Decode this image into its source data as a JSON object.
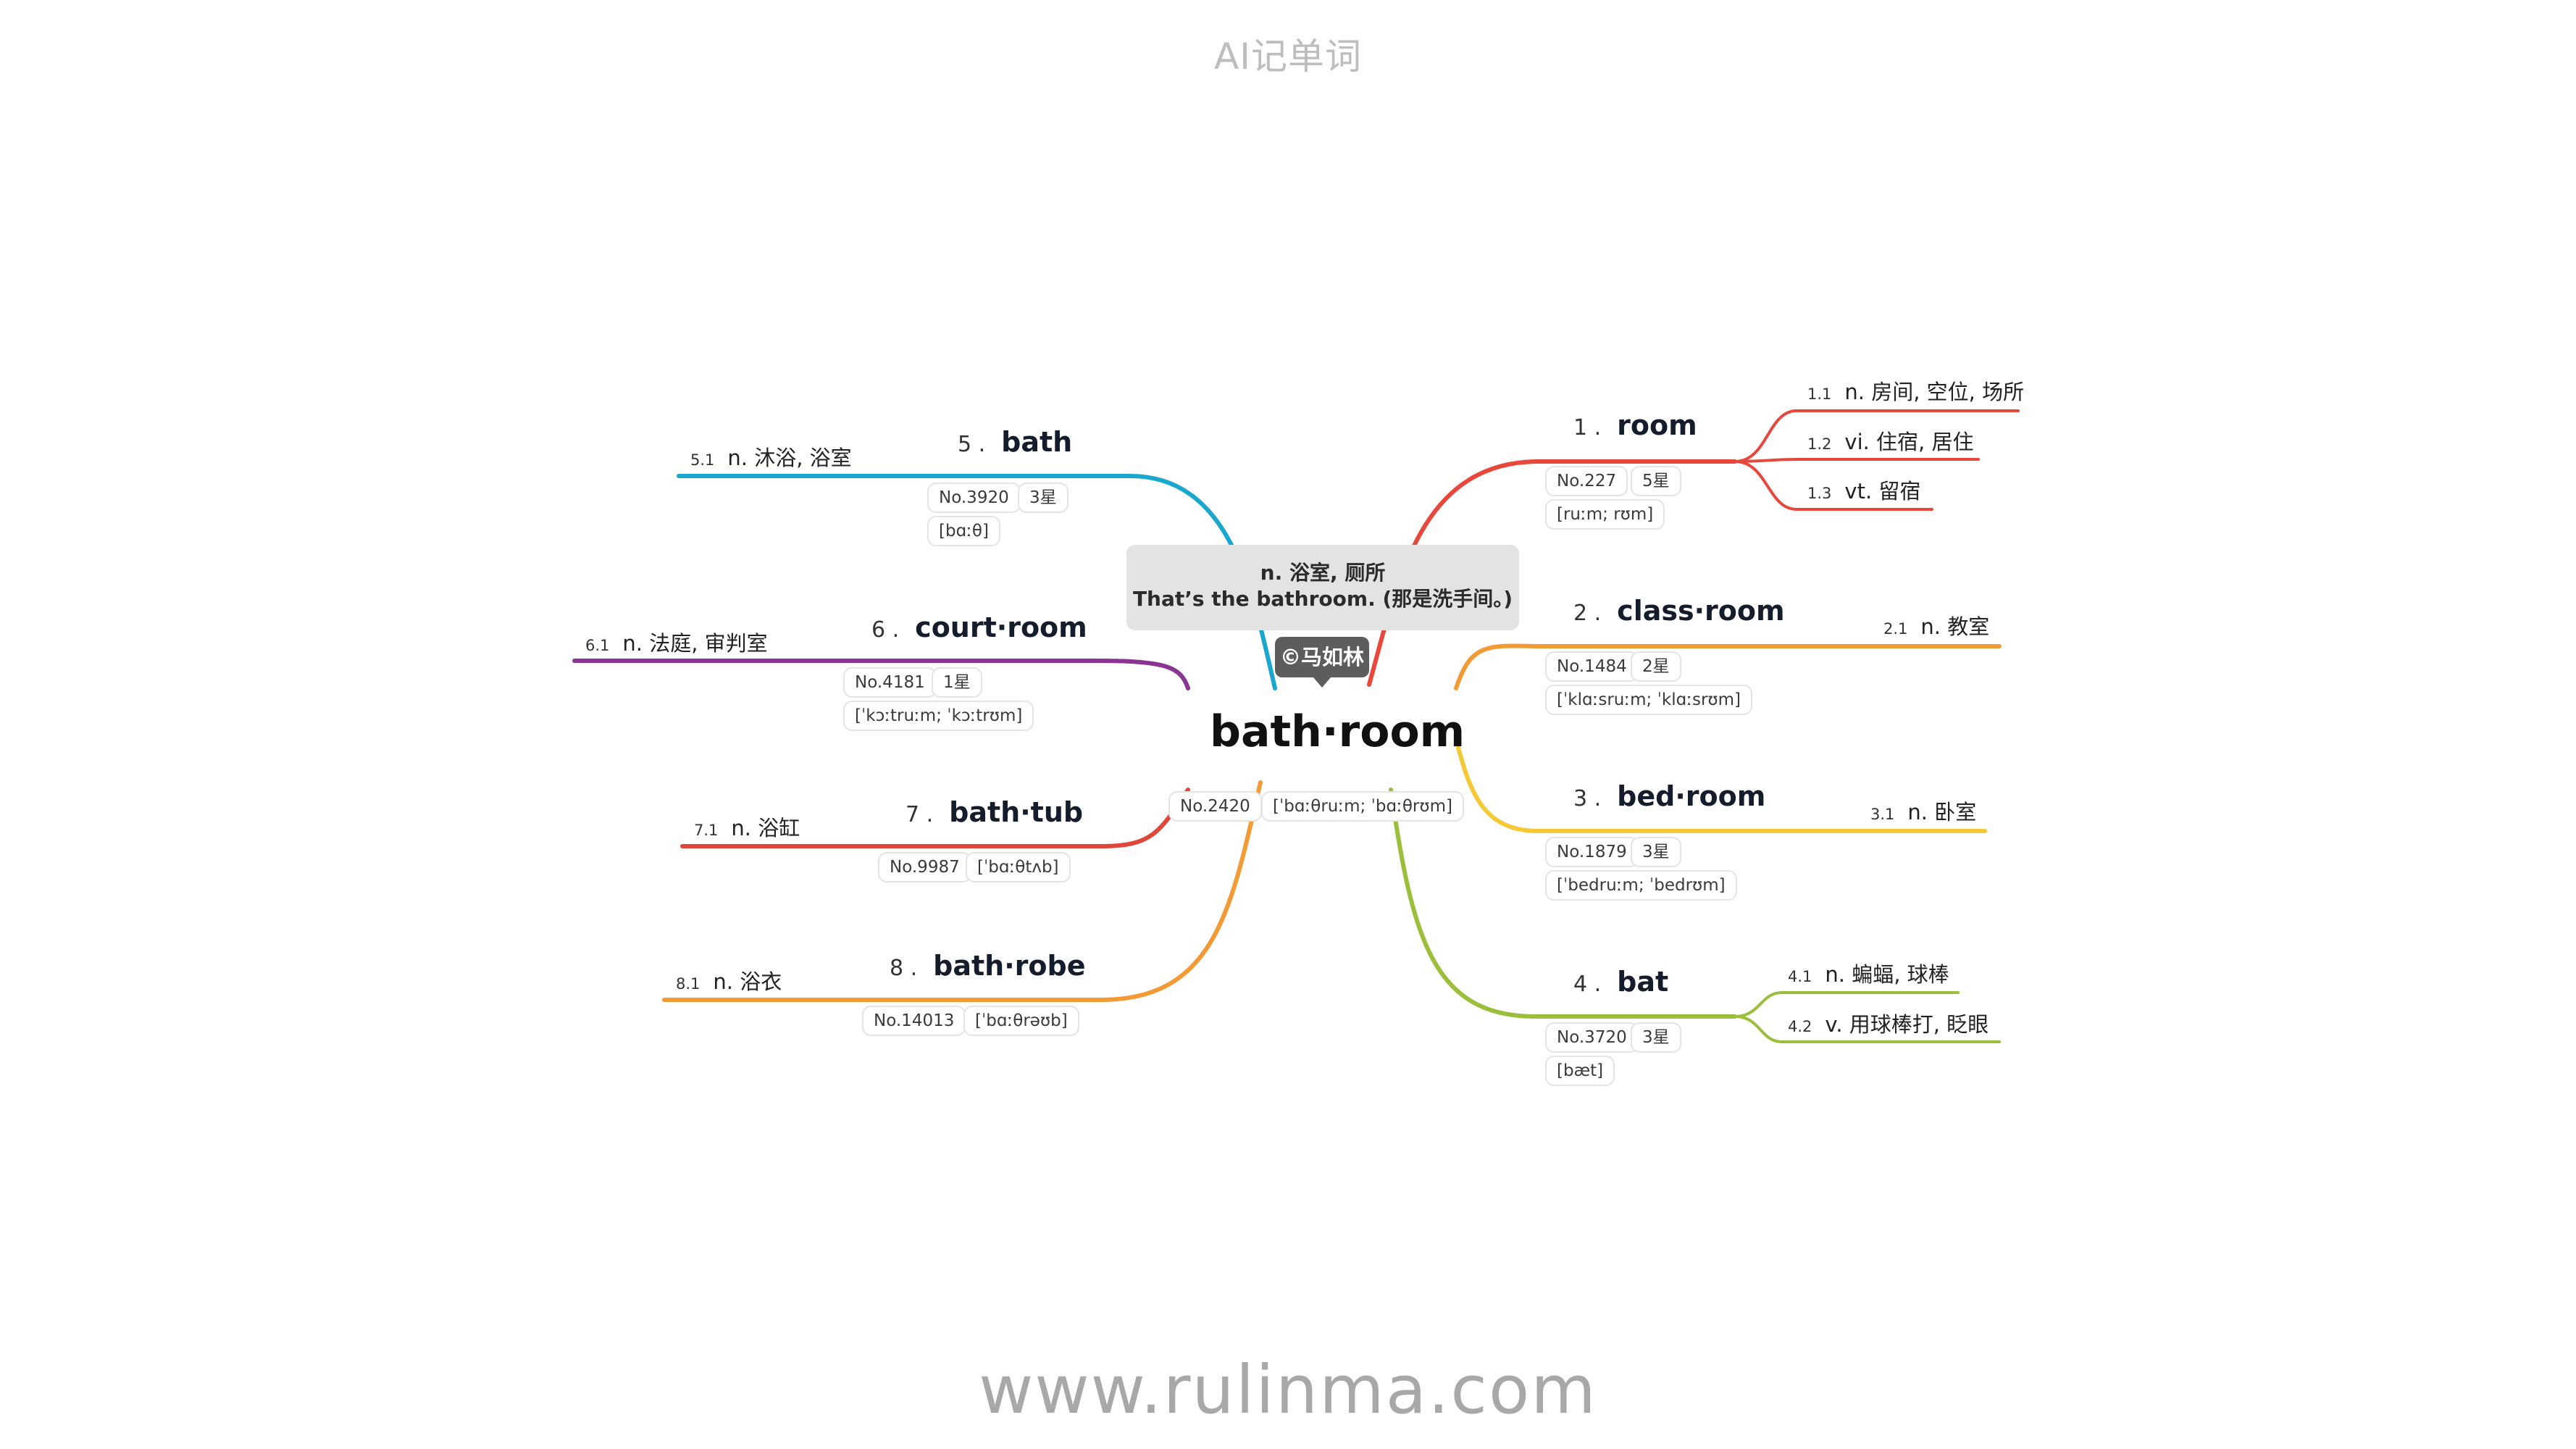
{
  "header": {
    "title": "AI记单词"
  },
  "footer": {
    "url": "www.rulinma.com"
  },
  "center": {
    "word": "bath·room",
    "number": "No.2420",
    "phonetic": "[ˈbɑːθruːm; ˈbɑːθrʊm]",
    "definition": "n. 浴室, 厕所",
    "example": "That’s the bathroom. (那是洗手间。)",
    "copyright": "©马如林"
  },
  "branches": [
    {
      "index": "1 .",
      "word": "room",
      "number": "No.227",
      "stars": "5星",
      "phonetic": "[ruːm; rʊm]",
      "color": "#e8473b",
      "senses": [
        {
          "id": "1.1",
          "text": "n. 房间, 空位, 场所"
        },
        {
          "id": "1.2",
          "text": "vi. 住宿, 居住"
        },
        {
          "id": "1.3",
          "text": "vt. 留宿"
        }
      ]
    },
    {
      "index": "2 .",
      "word": "class·room",
      "number": "No.1484",
      "stars": "2星",
      "phonetic": "[ˈklɑːsruːm; ˈklɑːsrʊm]",
      "color": "#f39a34",
      "senses": [
        {
          "id": "2.1",
          "text": "n. 教室"
        }
      ]
    },
    {
      "index": "3 .",
      "word": "bed·room",
      "number": "No.1879",
      "stars": "3星",
      "phonetic": "[ˈbedruːm; ˈbedrʊm]",
      "color": "#f5c835",
      "senses": [
        {
          "id": "3.1",
          "text": "n. 卧室"
        }
      ]
    },
    {
      "index": "4 .",
      "word": "bat",
      "number": "No.3720",
      "stars": "3星",
      "phonetic": "[bæt]",
      "color": "#9bbf3a",
      "senses": [
        {
          "id": "4.1",
          "text": "n. 蝙蝠, 球棒"
        },
        {
          "id": "4.2",
          "text": "v. 用球棒打, 眨眼"
        }
      ]
    },
    {
      "index": "5 .",
      "word": "bath",
      "number": "No.3920",
      "stars": "3星",
      "phonetic": "[bɑːθ]",
      "color": "#1aa7cf",
      "senses": [
        {
          "id": "5.1",
          "text": "n. 沐浴, 浴室"
        }
      ]
    },
    {
      "index": "6 .",
      "word": "court·room",
      "number": "No.4181",
      "stars": "1星",
      "phonetic": "[ˈkɔːtruːm; ˈkɔːtrʊm]",
      "color": "#8a3494",
      "senses": [
        {
          "id": "6.1",
          "text": "n. 法庭, 审判室"
        }
      ]
    },
    {
      "index": "7 .",
      "word": "bath·tub",
      "number": "No.9987",
      "stars": "",
      "phonetic": "[ˈbɑːθtʌb]",
      "color": "#e0463a",
      "senses": [
        {
          "id": "7.1",
          "text": "n. 浴缸"
        }
      ]
    },
    {
      "index": "8 .",
      "word": "bath·robe",
      "number": "No.14013",
      "stars": "",
      "phonetic": "[ˈbɑːθrəʊb]",
      "color": "#f39a34",
      "senses": [
        {
          "id": "8.1",
          "text": "n. 浴衣"
        }
      ]
    }
  ]
}
